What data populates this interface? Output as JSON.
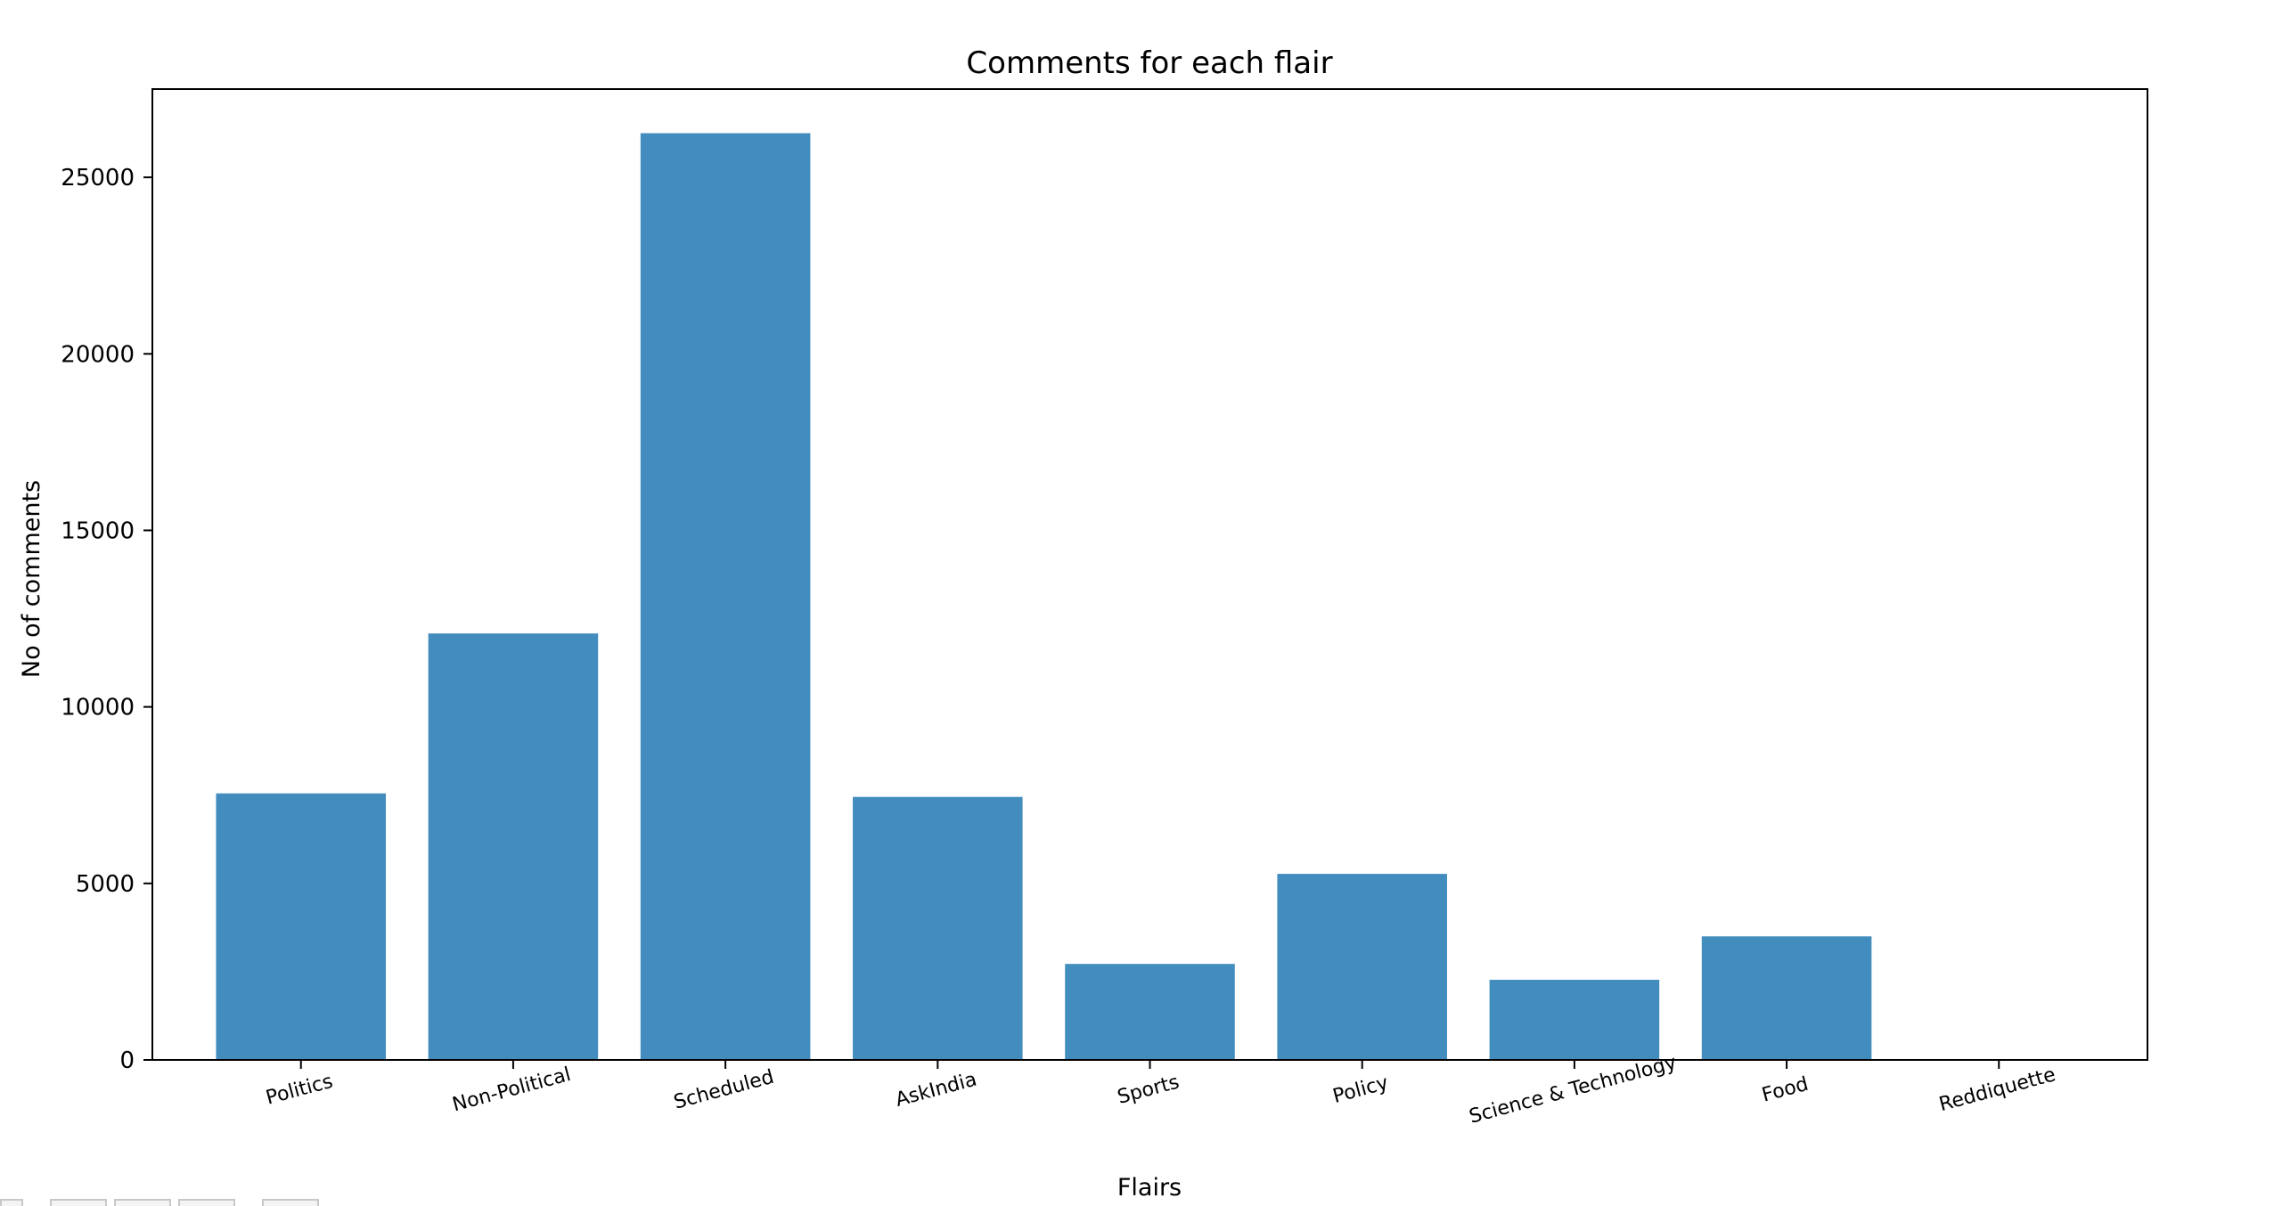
{
  "chart_data": {
    "type": "bar",
    "title": "Comments for each flair",
    "xlabel": "Flairs",
    "ylabel": "No of comments",
    "categories": [
      "Politics",
      "Non-Political",
      "Scheduled",
      "AskIndia",
      "Sports",
      "Policy",
      "Science & Technology",
      "Food",
      "Reddiquette"
    ],
    "values": [
      7550,
      12080,
      26250,
      7450,
      2720,
      5270,
      2270,
      3500,
      0
    ],
    "ylim": [
      0,
      27500
    ],
    "yticks": [
      0,
      5000,
      10000,
      15000,
      20000,
      25000
    ],
    "bar_color": "#438dbe",
    "grid": false,
    "legend": "none"
  }
}
